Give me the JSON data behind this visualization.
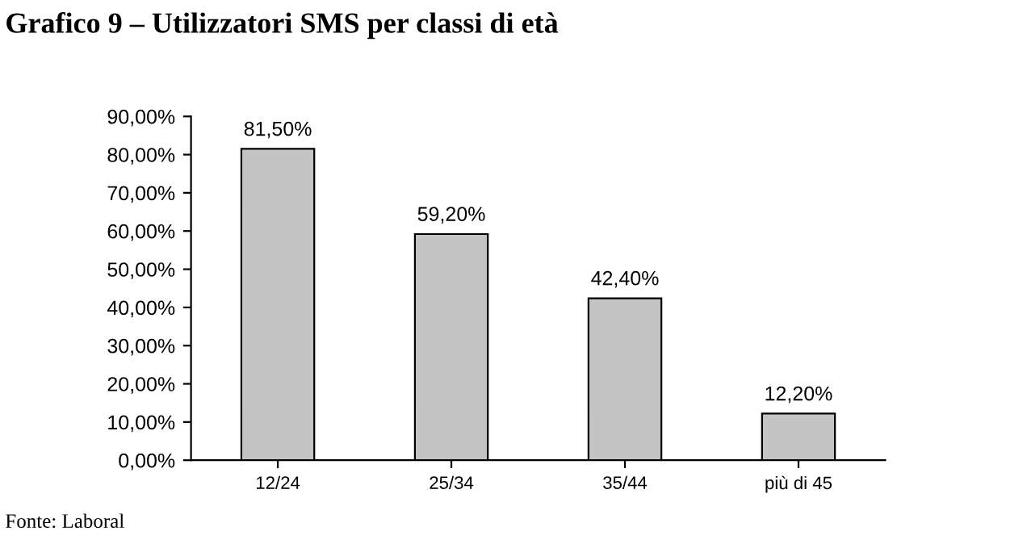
{
  "chart_data": {
    "type": "bar",
    "title": "Grafico 9 – Utilizzatori SMS per classi di età",
    "categories": [
      "12/24",
      "25/34",
      "35/44",
      "più di 45"
    ],
    "values": [
      81.5,
      59.2,
      42.4,
      12.2
    ],
    "value_labels": [
      "81,50%",
      "59,20%",
      "42,40%",
      "12,20%"
    ],
    "color": "#c4c4c4",
    "ylim": [
      0,
      90
    ],
    "yticks": [
      {
        "value": 0,
        "label": "0,00%"
      },
      {
        "value": 10,
        "label": "10,00%"
      },
      {
        "value": 20,
        "label": "20,00%"
      },
      {
        "value": 30,
        "label": "30,00%"
      },
      {
        "value": 40,
        "label": "40,00%"
      },
      {
        "value": 50,
        "label": "50,00%"
      },
      {
        "value": 60,
        "label": "60,00%"
      },
      {
        "value": 70,
        "label": "70,00%"
      },
      {
        "value": 80,
        "label": "80,00%"
      },
      {
        "value": 90,
        "label": "90,00%"
      }
    ],
    "grid": false,
    "legend": false,
    "annotations": [
      "Fonte: Laboral"
    ]
  }
}
